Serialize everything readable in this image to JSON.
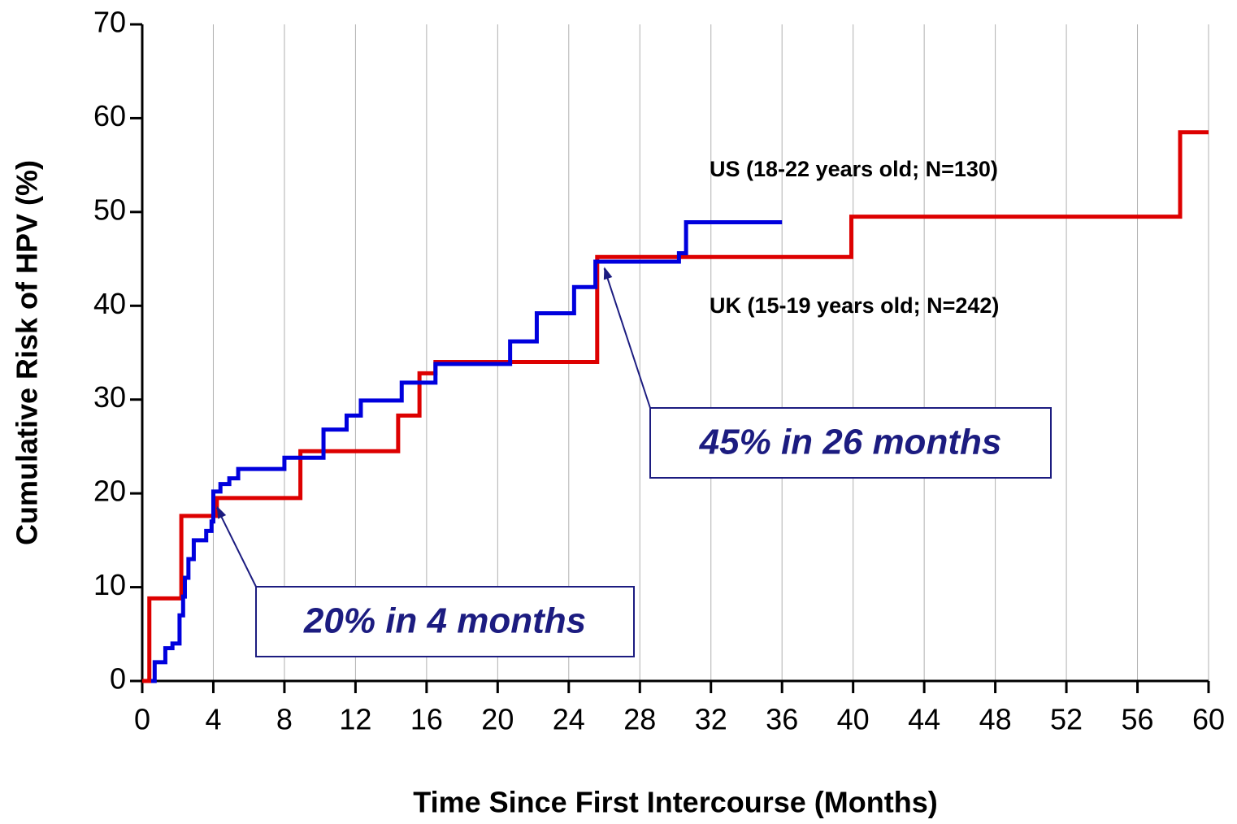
{
  "chart_data": {
    "type": "step-line",
    "xlabel": "Time Since First Intercourse (Months)",
    "ylabel": "Cumulative Risk of HPV (%)",
    "xlim": [
      0,
      60
    ],
    "xticks": [
      0,
      4,
      8,
      12,
      16,
      20,
      24,
      28,
      32,
      36,
      40,
      44,
      48,
      52,
      56,
      60
    ],
    "ylim": [
      0,
      70
    ],
    "yticks": [
      0,
      10,
      20,
      30,
      40,
      50,
      60,
      70
    ],
    "grid": "x",
    "series": [
      {
        "name": "UK (15-19 years old; N=242)",
        "color": "#dd0000",
        "x": [
          0,
          0.4,
          2.2,
          4.2,
          8.9,
          14.4,
          15.6,
          16.5,
          25.6,
          39.9,
          58.4,
          60
        ],
        "values": [
          0,
          8.8,
          17.6,
          19.5,
          24.5,
          28.3,
          32.8,
          34.0,
          45.2,
          49.5,
          58.5,
          58.5
        ]
      },
      {
        "name": "US (18-22 years old; N=130)",
        "color": "#0000dd",
        "x": [
          0.5,
          0.7,
          1.3,
          1.7,
          2.1,
          2.3,
          2.4,
          2.6,
          2.9,
          3.6,
          3.9,
          4.0,
          4.4,
          4.9,
          5.4,
          8.0,
          10.2,
          11.5,
          12.3,
          14.6,
          16.5,
          20.7,
          22.2,
          24.3,
          25.5,
          30.2,
          30.6,
          36.0
        ],
        "values": [
          0,
          2.0,
          3.5,
          4.0,
          7.0,
          9.0,
          11.0,
          13.0,
          15.0,
          16.0,
          17.0,
          20.2,
          21.0,
          21.6,
          22.6,
          23.8,
          26.8,
          28.3,
          29.9,
          31.8,
          33.8,
          36.2,
          39.2,
          42.0,
          44.7,
          45.6,
          48.9,
          48.9
        ]
      }
    ],
    "annotations": [
      {
        "text": "20% in 4 months",
        "x": 4.2,
        "y": 19
      },
      {
        "text": "45% in 26 months",
        "x": 26,
        "y": 44.5
      }
    ]
  }
}
